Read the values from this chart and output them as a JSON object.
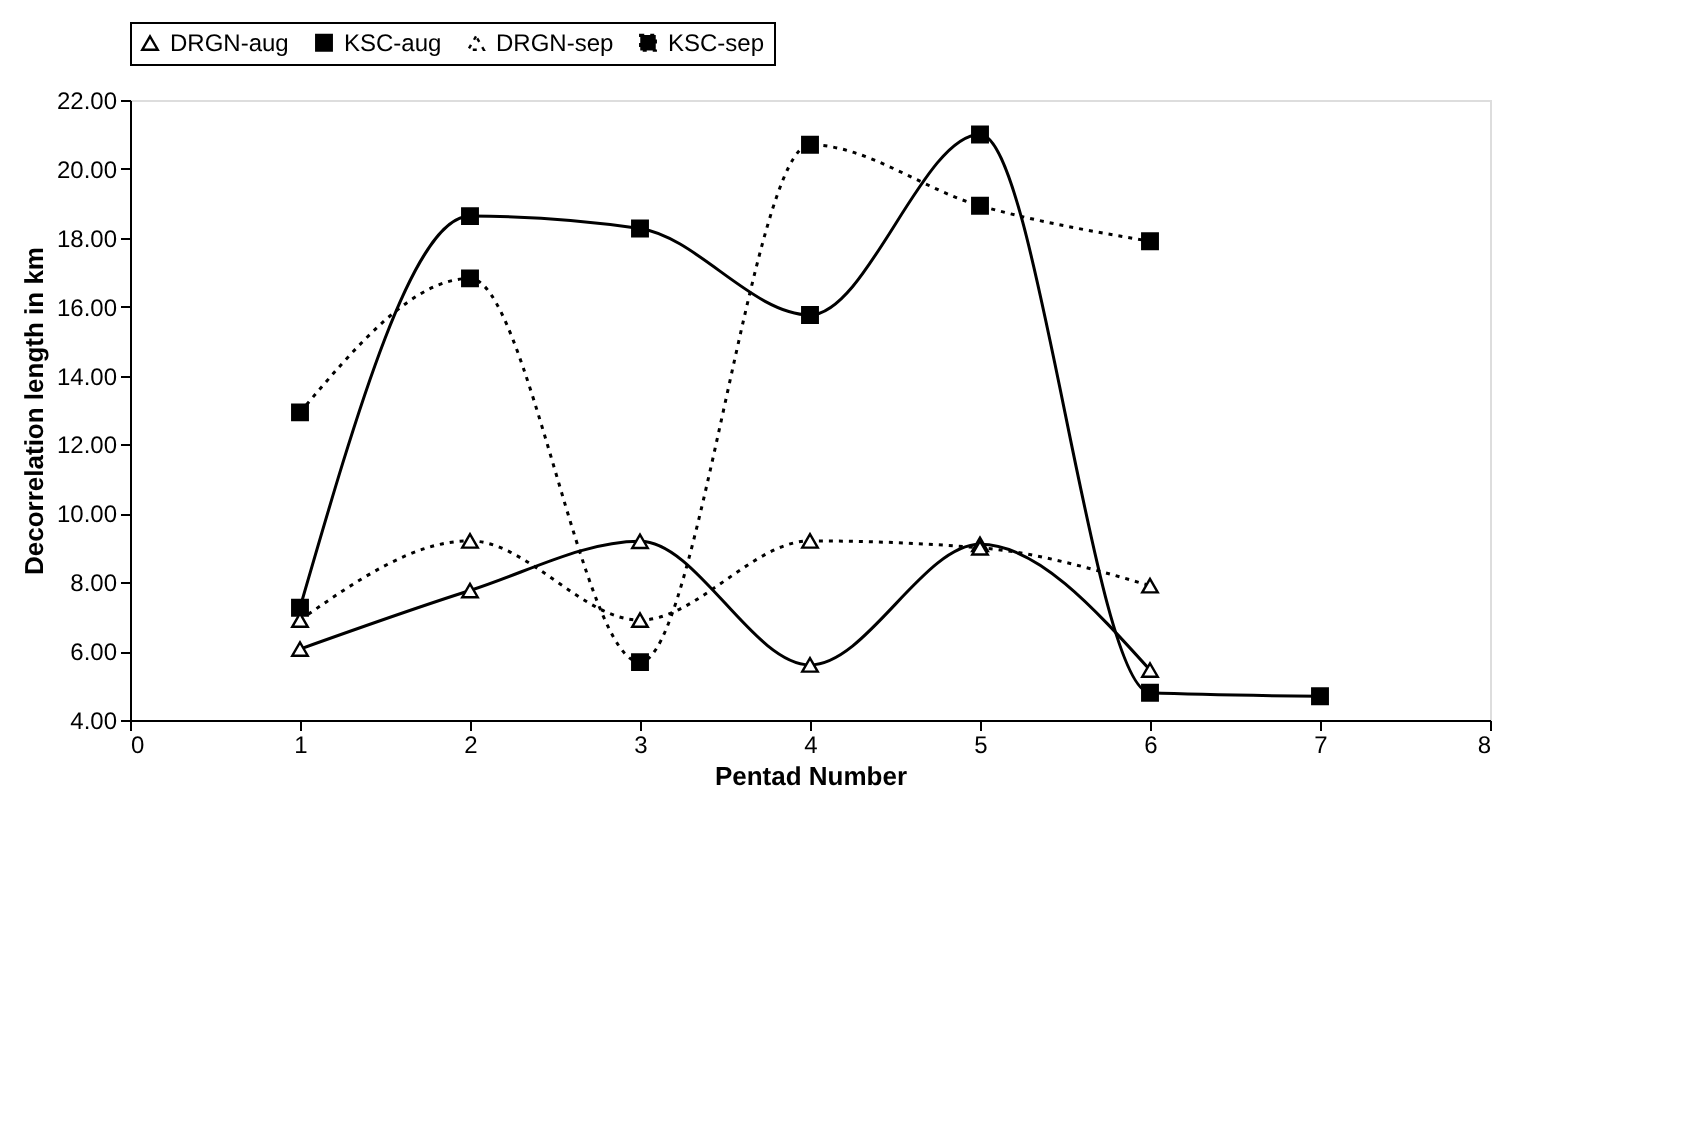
{
  "chart_data": {
    "type": "line",
    "x": [
      1,
      2,
      3,
      4,
      5,
      6,
      7
    ],
    "series": [
      {
        "name": "DRGN-aug",
        "color": "#000000",
        "marker": "triangle",
        "line_style": "solid",
        "values": [
          6.06,
          7.76,
          9.19,
          5.6,
          9.1,
          5.45,
          null
        ]
      },
      {
        "name": "KSC-aug",
        "color": "#000000",
        "marker": "square",
        "line_style": "solid",
        "values": [
          7.26,
          18.63,
          18.27,
          15.76,
          21.0,
          4.79,
          4.69
        ]
      },
      {
        "name": "DRGN-sep",
        "color": "#000000",
        "marker": "triangle",
        "line_style": "dotted",
        "values": [
          6.9,
          9.2,
          6.9,
          9.2,
          9.0,
          7.9,
          null
        ]
      },
      {
        "name": "KSC-sep",
        "color": "#000000",
        "marker": "square",
        "line_style": "dotted",
        "values": [
          12.93,
          16.82,
          5.68,
          20.7,
          18.93,
          17.9,
          null
        ]
      }
    ],
    "xlabel": "Pentad Number",
    "ylabel": "Decorrelation length in km",
    "xlim": [
      0,
      8
    ],
    "xticks": [
      0,
      1,
      2,
      3,
      4,
      5,
      6,
      7,
      8
    ],
    "ylim": [
      4,
      22
    ],
    "yticks": [
      {
        "value": 4,
        "label": "4.00"
      },
      {
        "value": 6,
        "label": "6.00"
      },
      {
        "value": 8,
        "label": "8.00"
      },
      {
        "value": 10,
        "label": "10.00"
      },
      {
        "value": 12,
        "label": "12.00"
      },
      {
        "value": 14,
        "label": "14.00"
      },
      {
        "value": 16,
        "label": "16.00"
      },
      {
        "value": 18,
        "label": "18.00"
      },
      {
        "value": 20,
        "label": "20.00"
      },
      {
        "value": 22,
        "label": "22.00"
      }
    ],
    "grid": false,
    "legend": "top"
  }
}
